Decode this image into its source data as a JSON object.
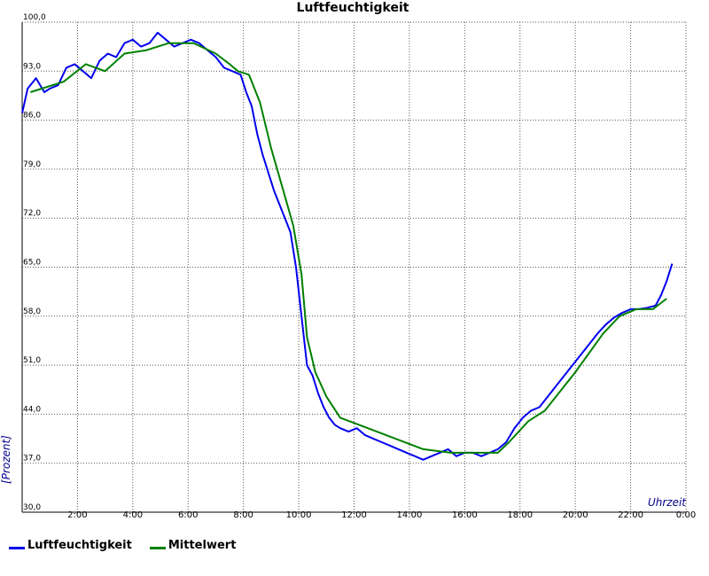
{
  "chart_data": {
    "type": "line",
    "title": "Luftfeuchtigkeit",
    "xlabel": "Uhrzeit",
    "ylabel": "[Prozent]",
    "xlim": [
      0,
      24
    ],
    "ylim": [
      30,
      100
    ],
    "grid": true,
    "legend_position": "bottom-left",
    "y_tick_labels": [
      "30,0",
      "37,0",
      "44,0",
      "51,0",
      "58,0",
      "65,0",
      "72,0",
      "79,0",
      "86,0",
      "93,0",
      "100,0"
    ],
    "y_tick_values": [
      30,
      37,
      44,
      51,
      58,
      65,
      72,
      79,
      86,
      93,
      100
    ],
    "x_tick_labels": [
      "2:00",
      "4:00",
      "6:00",
      "8:00",
      "10:00",
      "12:00",
      "14:00",
      "16:00",
      "18:00",
      "20:00",
      "22:00",
      "0:00"
    ],
    "x_tick_values": [
      2,
      4,
      6,
      8,
      10,
      12,
      14,
      16,
      18,
      20,
      22,
      24
    ],
    "series": [
      {
        "name": "Luftfeuchtigkeit",
        "color": "#0000ee",
        "x": [
          0,
          0.2,
          0.5,
          0.8,
          1.0,
          1.3,
          1.6,
          1.9,
          2.2,
          2.5,
          2.8,
          3.1,
          3.4,
          3.7,
          4.0,
          4.3,
          4.6,
          4.9,
          5.2,
          5.5,
          5.8,
          6.1,
          6.4,
          6.7,
          7.0,
          7.3,
          7.6,
          7.9,
          8.1,
          8.3,
          8.5,
          8.7,
          8.9,
          9.1,
          9.3,
          9.5,
          9.7,
          9.9,
          10.1,
          10.3,
          10.5,
          10.7,
          10.9,
          11.1,
          11.3,
          11.5,
          11.8,
          12.1,
          12.4,
          12.7,
          13.0,
          13.3,
          13.6,
          13.9,
          14.2,
          14.5,
          14.8,
          15.1,
          15.4,
          15.7,
          16.0,
          16.3,
          16.6,
          16.9,
          17.2,
          17.5,
          17.8,
          18.1,
          18.4,
          18.7,
          19.0,
          19.3,
          19.6,
          19.9,
          20.2,
          20.5,
          20.8,
          21.1,
          21.4,
          21.7,
          22.0,
          22.3,
          22.6,
          22.9,
          23.1,
          23.3,
          23.5
        ],
        "y": [
          87.0,
          90.5,
          92.0,
          90.0,
          90.5,
          91.0,
          93.5,
          94.0,
          93.0,
          92.0,
          94.5,
          95.5,
          95.0,
          97.0,
          97.5,
          96.5,
          97.0,
          98.5,
          97.5,
          96.5,
          97.0,
          97.5,
          97.0,
          96.0,
          95.0,
          93.5,
          93.0,
          92.5,
          90.0,
          88.0,
          84.0,
          81.0,
          78.5,
          76.0,
          74.0,
          72.0,
          70.0,
          65.0,
          58.0,
          51.0,
          49.5,
          47.0,
          45.0,
          43.5,
          42.5,
          42.0,
          41.5,
          42.0,
          41.0,
          40.5,
          40.0,
          39.5,
          39.0,
          38.5,
          38.0,
          37.5,
          38.0,
          38.5,
          39.0,
          38.0,
          38.5,
          38.5,
          38.0,
          38.5,
          39.0,
          40.0,
          42.0,
          43.5,
          44.5,
          45.0,
          46.5,
          48.0,
          49.5,
          51.0,
          52.5,
          54.0,
          55.5,
          56.8,
          57.8,
          58.5,
          59.0,
          59.0,
          59.2,
          59.5,
          61.0,
          63.0,
          65.5
        ]
      },
      {
        "name": "Mittelwert",
        "color": "#008000",
        "x": [
          0.3,
          1.5,
          2.3,
          3.0,
          3.7,
          4.5,
          5.3,
          6.2,
          7.0,
          7.5,
          7.8,
          8.2,
          8.6,
          9.0,
          9.4,
          9.8,
          10.1,
          10.3,
          10.6,
          11.0,
          11.5,
          12.5,
          13.5,
          14.5,
          15.5,
          16.5,
          17.2,
          17.6,
          18.3,
          18.9,
          20.0,
          21.0,
          21.6,
          22.2,
          22.8,
          23.3
        ],
        "y": [
          90.0,
          91.5,
          94.0,
          93.0,
          95.5,
          96.0,
          97.0,
          97.0,
          95.5,
          94.0,
          93.0,
          92.5,
          88.5,
          82.0,
          76.5,
          71.0,
          64.0,
          55.0,
          50.0,
          46.5,
          43.5,
          42.0,
          40.5,
          39.0,
          38.5,
          38.5,
          38.5,
          40.0,
          43.0,
          44.5,
          50.0,
          55.5,
          58.0,
          59.0,
          59.0,
          60.5
        ]
      }
    ]
  },
  "legend": {
    "items": [
      {
        "label": "Luftfeuchtigkeit",
        "color": "#0000ee"
      },
      {
        "label": "Mittelwert",
        "color": "#008000"
      }
    ]
  }
}
